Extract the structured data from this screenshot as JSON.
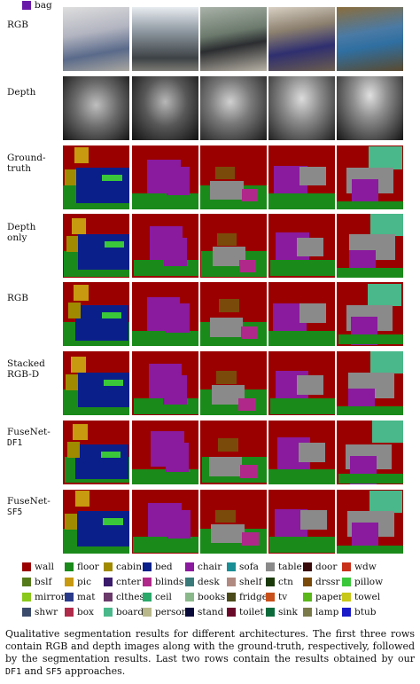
{
  "rows": [
    {
      "label": "RGB"
    },
    {
      "label": "Depth"
    },
    {
      "label": "Ground-truth",
      "label_lines": [
        "Ground-",
        "truth"
      ]
    },
    {
      "label": "Depth only",
      "label_lines": [
        "Depth",
        "only"
      ]
    },
    {
      "label": "RGB"
    },
    {
      "label": "Stacked RGB-D",
      "label_lines": [
        "Stacked",
        "RGB-D"
      ]
    },
    {
      "label": "FuseNet-DF1",
      "label_lines": [
        "FuseNet-",
        "DF1"
      ]
    },
    {
      "label": "FuseNet-SF5",
      "label_lines": [
        "FuseNet-",
        "SF5"
      ]
    }
  ],
  "legend": [
    {
      "label": "wall",
      "color": "#9b0000"
    },
    {
      "label": "floor",
      "color": "#1a8a1a"
    },
    {
      "label": "cabin",
      "color": "#a08a00"
    },
    {
      "label": "bed",
      "color": "#0b1f8a"
    },
    {
      "label": "chair",
      "color": "#8a1a9e"
    },
    {
      "label": "sofa",
      "color": "#1a8f95"
    },
    {
      "label": "table",
      "color": "#8a8a8a"
    },
    {
      "label": "door",
      "color": "#3a0b0b"
    },
    {
      "label": "wdw",
      "color": "#c8301a"
    },
    {
      "label": "bslf",
      "color": "#557a1a"
    },
    {
      "label": "pic",
      "color": "#c89a10"
    },
    {
      "label": "cnter",
      "color": "#3a1a6a"
    },
    {
      "label": "blinds",
      "color": "#b0288a"
    },
    {
      "label": "desk",
      "color": "#3a7a7a"
    },
    {
      "label": "shelf",
      "color": "#b08a80"
    },
    {
      "label": "ctn",
      "color": "#1a3a0a"
    },
    {
      "label": "drssr",
      "color": "#7a4a0a"
    },
    {
      "label": "pillow",
      "color": "#3ac83a"
    },
    {
      "label": "mirror",
      "color": "#8ac81a"
    },
    {
      "label": "mat",
      "color": "#2a3a8a"
    },
    {
      "label": "clthes",
      "color": "#6a3a6a"
    },
    {
      "label": "ceil",
      "color": "#2aa86a"
    },
    {
      "label": "books",
      "color": "#8ab88a"
    },
    {
      "label": "fridge",
      "color": "#4a4a1a"
    },
    {
      "label": "tv",
      "color": "#c8501a"
    },
    {
      "label": "paper",
      "color": "#5ab81a"
    },
    {
      "label": "towel",
      "color": "#c8c81a"
    },
    {
      "label": "shwr",
      "color": "#3a4a6a"
    },
    {
      "label": "box",
      "color": "#b02a4a"
    },
    {
      "label": "board",
      "color": "#4ab88a"
    },
    {
      "label": "person",
      "color": "#b8b88a"
    },
    {
      "label": "stand",
      "color": "#0a0a3a"
    },
    {
      "label": "toilet",
      "color": "#6a0a2a"
    },
    {
      "label": "sink",
      "color": "#0a6a3a"
    },
    {
      "label": "lamp",
      "color": "#7a7a4a"
    },
    {
      "label": "btub",
      "color": "#1a1ac8"
    },
    {
      "label": "bag",
      "color": "#6a1aa8"
    }
  ],
  "caption": {
    "part1": "Qualitative segmentation results for different architectures. The first three rows contain RGB and depth images along with the ground-truth, respectively, followed by the segmentation results. Last two rows contain the results obtained by our ",
    "df1": "DF1",
    "and": " and ",
    "sf5": "SF5",
    "part2": " approaches."
  }
}
